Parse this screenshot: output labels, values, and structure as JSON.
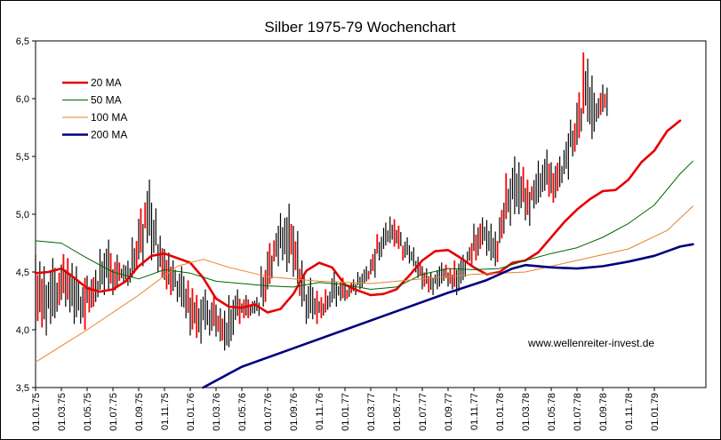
{
  "chart_data": {
    "type": "line",
    "title": "Silber 1975-79 Wochenchart",
    "credit": "www.wellenreiter-invest.de",
    "xlabel": "",
    "ylabel": "",
    "ylim": [
      3.5,
      6.5
    ],
    "y_ticks": [
      "3,5",
      "4,0",
      "4,5",
      "5,0",
      "5,5",
      "6,0",
      "6,5"
    ],
    "x_ticks": [
      "01.01.75",
      "01.03.75",
      "01.05.75",
      "01.07.75",
      "01.09.75",
      "01.11.75",
      "01.01.76",
      "01.03.76",
      "01.05.76",
      "01.07.76",
      "01.09.76",
      "01.11.76",
      "01.01.77",
      "01.03.77",
      "01.05.77",
      "01.07.77",
      "01.09.77",
      "01.11.77",
      "01.01.78",
      "01.03.78",
      "01.05.78",
      "01.07.78",
      "01.09.78",
      "01.11.78",
      "01.01.79"
    ],
    "legend_position": "top-left",
    "grid": false,
    "colors": {
      "price": "#000000",
      "red_candle": "#ff0000"
    },
    "series": [
      {
        "name": "20 MA",
        "color": "#e60000",
        "width": 2.6,
        "points": [
          [
            0,
            4.49
          ],
          [
            1,
            4.5
          ],
          [
            2,
            4.53
          ],
          [
            3,
            4.45
          ],
          [
            4,
            4.36
          ],
          [
            5,
            4.33
          ],
          [
            6,
            4.35
          ],
          [
            7,
            4.42
          ],
          [
            8,
            4.55
          ],
          [
            9,
            4.64
          ],
          [
            10,
            4.66
          ],
          [
            11,
            4.62
          ],
          [
            12,
            4.58
          ],
          [
            13,
            4.45
          ],
          [
            14,
            4.27
          ],
          [
            15,
            4.2
          ],
          [
            16,
            4.19
          ],
          [
            17,
            4.22
          ],
          [
            18,
            4.15
          ],
          [
            19,
            4.18
          ],
          [
            20,
            4.31
          ],
          [
            21,
            4.51
          ],
          [
            22,
            4.58
          ],
          [
            23,
            4.54
          ],
          [
            24,
            4.39
          ],
          [
            25,
            4.34
          ],
          [
            26,
            4.3
          ],
          [
            27,
            4.31
          ],
          [
            28,
            4.35
          ],
          [
            29,
            4.47
          ],
          [
            30,
            4.6
          ],
          [
            31,
            4.68
          ],
          [
            32,
            4.69
          ],
          [
            33,
            4.62
          ],
          [
            34,
            4.54
          ],
          [
            35,
            4.48
          ],
          [
            36,
            4.5
          ],
          [
            37,
            4.58
          ],
          [
            38,
            4.6
          ],
          [
            39,
            4.67
          ],
          [
            40,
            4.8
          ],
          [
            41,
            4.93
          ],
          [
            42,
            5.04
          ],
          [
            43,
            5.13
          ],
          [
            44,
            5.2
          ],
          [
            45,
            5.21
          ],
          [
            46,
            5.3
          ],
          [
            47,
            5.45
          ],
          [
            48,
            5.55
          ],
          [
            49,
            5.72
          ],
          [
            50,
            5.81
          ]
        ]
      },
      {
        "name": "50 MA",
        "color": "#006400",
        "width": 1,
        "points": [
          [
            0,
            4.77
          ],
          [
            2,
            4.75
          ],
          [
            4,
            4.62
          ],
          [
            6,
            4.5
          ],
          [
            8,
            4.44
          ],
          [
            10,
            4.52
          ],
          [
            12,
            4.49
          ],
          [
            14,
            4.42
          ],
          [
            16,
            4.4
          ],
          [
            18,
            4.38
          ],
          [
            20,
            4.37
          ],
          [
            22,
            4.41
          ],
          [
            24,
            4.39
          ],
          [
            26,
            4.35
          ],
          [
            28,
            4.37
          ],
          [
            30,
            4.48
          ],
          [
            32,
            4.53
          ],
          [
            34,
            4.52
          ],
          [
            36,
            4.53
          ],
          [
            38,
            4.6
          ],
          [
            40,
            4.66
          ],
          [
            42,
            4.71
          ],
          [
            44,
            4.8
          ],
          [
            46,
            4.92
          ],
          [
            48,
            5.08
          ],
          [
            50,
            5.35
          ],
          [
            51,
            5.46
          ]
        ]
      },
      {
        "name": "100 MA",
        "color": "#e8822a",
        "width": 1,
        "points": [
          [
            0,
            3.72
          ],
          [
            4,
            4.0
          ],
          [
            8,
            4.3
          ],
          [
            11,
            4.55
          ],
          [
            13,
            4.61
          ],
          [
            15,
            4.54
          ],
          [
            18,
            4.46
          ],
          [
            22,
            4.42
          ],
          [
            26,
            4.4
          ],
          [
            30,
            4.44
          ],
          [
            34,
            4.48
          ],
          [
            38,
            4.5
          ],
          [
            42,
            4.6
          ],
          [
            46,
            4.7
          ],
          [
            49,
            4.86
          ],
          [
            51,
            5.07
          ]
        ]
      },
      {
        "name": "200 MA",
        "color": "#000080",
        "width": 2.6,
        "points": [
          [
            13,
            3.5
          ],
          [
            16,
            3.68
          ],
          [
            20,
            3.84
          ],
          [
            24,
            4.0
          ],
          [
            28,
            4.16
          ],
          [
            32,
            4.32
          ],
          [
            35,
            4.43
          ],
          [
            37,
            4.53
          ],
          [
            38,
            4.56
          ],
          [
            40,
            4.54
          ],
          [
            42,
            4.53
          ],
          [
            44,
            4.55
          ],
          [
            46,
            4.59
          ],
          [
            48,
            4.64
          ],
          [
            50,
            4.72
          ],
          [
            51,
            4.74
          ]
        ]
      }
    ],
    "price_bars": [
      {
        "x": 0,
        "h": 4.65,
        "l": 4.0
      },
      {
        "x": 0.5,
        "h": 4.55,
        "l": 3.95
      },
      {
        "x": 1,
        "h": 4.62,
        "l": 4.05
      },
      {
        "x": 1.5,
        "h": 4.58,
        "l": 4.1
      },
      {
        "x": 2,
        "h": 4.7,
        "l": 4.2
      },
      {
        "x": 2.5,
        "h": 4.62,
        "l": 4.15
      },
      {
        "x": 3,
        "h": 4.55,
        "l": 4.05
      },
      {
        "x": 3.5,
        "h": 4.45,
        "l": 4.0
      },
      {
        "x": 4,
        "h": 4.5,
        "l": 4.15
      },
      {
        "x": 4.5,
        "h": 4.55,
        "l": 4.2
      },
      {
        "x": 5,
        "h": 4.7,
        "l": 4.3
      },
      {
        "x": 5.5,
        "h": 4.78,
        "l": 4.35
      },
      {
        "x": 6,
        "h": 4.65,
        "l": 4.3
      },
      {
        "x": 6.5,
        "h": 4.6,
        "l": 4.4
      },
      {
        "x": 7,
        "h": 4.62,
        "l": 4.38
      },
      {
        "x": 7.5,
        "h": 4.8,
        "l": 4.45
      },
      {
        "x": 8,
        "h": 5.05,
        "l": 4.55
      },
      {
        "x": 8.5,
        "h": 5.3,
        "l": 4.75
      },
      {
        "x": 9,
        "h": 5.15,
        "l": 4.6
      },
      {
        "x": 9.5,
        "h": 4.85,
        "l": 4.45
      },
      {
        "x": 10,
        "h": 4.7,
        "l": 4.35
      },
      {
        "x": 10.5,
        "h": 4.6,
        "l": 4.3
      },
      {
        "x": 11,
        "h": 4.55,
        "l": 4.2
      },
      {
        "x": 11.5,
        "h": 4.5,
        "l": 4.1
      },
      {
        "x": 12,
        "h": 4.4,
        "l": 3.95
      },
      {
        "x": 12.5,
        "h": 4.3,
        "l": 3.88
      },
      {
        "x": 13,
        "h": 4.35,
        "l": 4.0
      },
      {
        "x": 13.5,
        "h": 4.3,
        "l": 3.95
      },
      {
        "x": 14,
        "h": 4.25,
        "l": 3.9
      },
      {
        "x": 14.5,
        "h": 4.2,
        "l": 3.82
      },
      {
        "x": 15,
        "h": 4.3,
        "l": 3.85
      },
      {
        "x": 15.5,
        "h": 4.35,
        "l": 4.05
      },
      {
        "x": 16,
        "h": 4.3,
        "l": 4.1
      },
      {
        "x": 16.5,
        "h": 4.28,
        "l": 4.1
      },
      {
        "x": 17,
        "h": 4.3,
        "l": 4.12
      },
      {
        "x": 17.5,
        "h": 4.55,
        "l": 4.2
      },
      {
        "x": 18,
        "h": 4.75,
        "l": 4.35
      },
      {
        "x": 18.5,
        "h": 4.9,
        "l": 4.55
      },
      {
        "x": 19,
        "h": 5.05,
        "l": 4.6
      },
      {
        "x": 19.5,
        "h": 5.15,
        "l": 4.5
      },
      {
        "x": 20,
        "h": 4.9,
        "l": 4.4
      },
      {
        "x": 20.5,
        "h": 4.6,
        "l": 4.2
      },
      {
        "x": 21,
        "h": 4.45,
        "l": 4.05
      },
      {
        "x": 21.5,
        "h": 4.4,
        "l": 4.05
      },
      {
        "x": 22,
        "h": 4.3,
        "l": 4.1
      },
      {
        "x": 22.5,
        "h": 4.35,
        "l": 4.15
      },
      {
        "x": 23,
        "h": 4.5,
        "l": 4.2
      },
      {
        "x": 23.5,
        "h": 4.45,
        "l": 4.25
      },
      {
        "x": 24,
        "h": 4.4,
        "l": 4.25
      },
      {
        "x": 24.5,
        "h": 4.45,
        "l": 4.3
      },
      {
        "x": 25,
        "h": 4.5,
        "l": 4.35
      },
      {
        "x": 25.5,
        "h": 4.55,
        "l": 4.4
      },
      {
        "x": 26,
        "h": 4.7,
        "l": 4.45
      },
      {
        "x": 26.5,
        "h": 4.85,
        "l": 4.6
      },
      {
        "x": 27,
        "h": 4.95,
        "l": 4.7
      },
      {
        "x": 27.5,
        "h": 4.98,
        "l": 4.72
      },
      {
        "x": 28,
        "h": 4.9,
        "l": 4.7
      },
      {
        "x": 28.5,
        "h": 4.8,
        "l": 4.6
      },
      {
        "x": 29,
        "h": 4.75,
        "l": 4.55
      },
      {
        "x": 29.5,
        "h": 4.65,
        "l": 4.45
      },
      {
        "x": 30,
        "h": 4.55,
        "l": 4.35
      },
      {
        "x": 30.5,
        "h": 4.5,
        "l": 4.3
      },
      {
        "x": 31,
        "h": 4.55,
        "l": 4.35
      },
      {
        "x": 31.5,
        "h": 4.6,
        "l": 4.4
      },
      {
        "x": 32,
        "h": 4.55,
        "l": 4.35
      },
      {
        "x": 32.5,
        "h": 4.6,
        "l": 4.3
      },
      {
        "x": 33,
        "h": 4.65,
        "l": 4.4
      },
      {
        "x": 33.5,
        "h": 4.75,
        "l": 4.55
      },
      {
        "x": 34,
        "h": 4.95,
        "l": 4.6
      },
      {
        "x": 34.5,
        "h": 5.0,
        "l": 4.7
      },
      {
        "x": 35,
        "h": 4.95,
        "l": 4.6
      },
      {
        "x": 35.5,
        "h": 4.85,
        "l": 4.55
      },
      {
        "x": 36,
        "h": 5.1,
        "l": 4.75
      },
      {
        "x": 36.5,
        "h": 5.4,
        "l": 4.9
      },
      {
        "x": 37,
        "h": 5.55,
        "l": 5.0
      },
      {
        "x": 37.5,
        "h": 5.45,
        "l": 5.0
      },
      {
        "x": 38,
        "h": 5.3,
        "l": 4.9
      },
      {
        "x": 38.5,
        "h": 5.35,
        "l": 5.05
      },
      {
        "x": 39,
        "h": 5.5,
        "l": 5.1
      },
      {
        "x": 39.5,
        "h": 5.6,
        "l": 5.15
      },
      {
        "x": 40,
        "h": 5.45,
        "l": 5.1
      },
      {
        "x": 40.5,
        "h": 5.5,
        "l": 5.2
      },
      {
        "x": 41,
        "h": 5.7,
        "l": 5.3
      },
      {
        "x": 41.5,
        "h": 5.85,
        "l": 5.5
      },
      {
        "x": 42,
        "h": 6.1,
        "l": 5.6
      },
      {
        "x": 42.5,
        "h": 6.4,
        "l": 5.8
      },
      {
        "x": 43,
        "h": 6.2,
        "l": 5.65
      },
      {
        "x": 43.5,
        "h": 6.05,
        "l": 5.8
      },
      {
        "x": 44,
        "h": 6.15,
        "l": 5.85
      }
    ]
  }
}
